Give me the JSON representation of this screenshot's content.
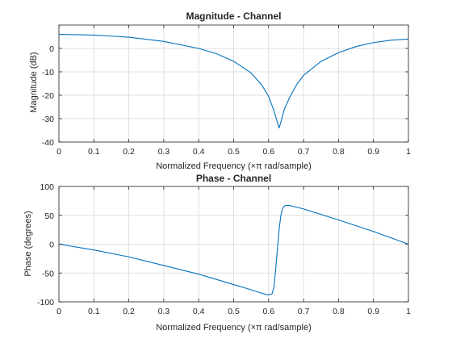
{
  "chart_data": [
    {
      "type": "line",
      "title": "Magnitude - Channel",
      "xlabel": "Normalized Frequency  (×π rad/sample)",
      "ylabel": "Magnitude (dB)",
      "xlim": [
        0,
        1
      ],
      "ylim": [
        -40,
        10
      ],
      "xticks": [
        0,
        0.1,
        0.2,
        0.3,
        0.4,
        0.5,
        0.6,
        0.7,
        0.8,
        0.9,
        1
      ],
      "yticks": [
        -40,
        -30,
        -20,
        -10,
        0
      ],
      "grid": true,
      "color": "#0072bd",
      "series": [
        {
          "x": [
            0,
            0.1,
            0.2,
            0.3,
            0.4,
            0.45,
            0.5,
            0.55,
            0.58,
            0.6,
            0.615,
            0.625,
            0.63,
            0.635,
            0.645,
            0.66,
            0.68,
            0.7,
            0.75,
            0.8,
            0.85,
            0.9,
            0.95,
            1
          ],
          "y": [
            6.0,
            5.7,
            4.8,
            3.0,
            0.0,
            -2.2,
            -5.5,
            -10.5,
            -15.5,
            -20.5,
            -26.5,
            -31.5,
            -34.0,
            -31.5,
            -26.0,
            -21.0,
            -15.5,
            -11.5,
            -5.5,
            -1.8,
            0.8,
            2.5,
            3.5,
            4.0
          ]
        }
      ]
    },
    {
      "type": "line",
      "title": "Phase - Channel",
      "xlabel": "Normalized Frequency  (×π rad/sample)",
      "ylabel": "Phase (degrees)",
      "xlim": [
        0,
        1
      ],
      "ylim": [
        -100,
        100
      ],
      "xticks": [
        0,
        0.1,
        0.2,
        0.3,
        0.4,
        0.5,
        0.6,
        0.7,
        0.8,
        0.9,
        1
      ],
      "yticks": [
        -100,
        -50,
        0,
        50,
        100
      ],
      "grid": true,
      "color": "#0072bd",
      "series": [
        {
          "x": [
            0,
            0.1,
            0.2,
            0.3,
            0.4,
            0.5,
            0.55,
            0.58,
            0.6,
            0.61,
            0.615,
            0.62,
            0.625,
            0.63,
            0.635,
            0.64,
            0.645,
            0.65,
            0.66,
            0.7,
            0.8,
            0.9,
            1
          ],
          "y": [
            0,
            -10,
            -22,
            -37,
            -52,
            -70,
            -79,
            -85,
            -88,
            -86,
            -75,
            -45,
            -10,
            25,
            50,
            62,
            66,
            67,
            67,
            61,
            42,
            22,
            0
          ]
        }
      ]
    }
  ]
}
